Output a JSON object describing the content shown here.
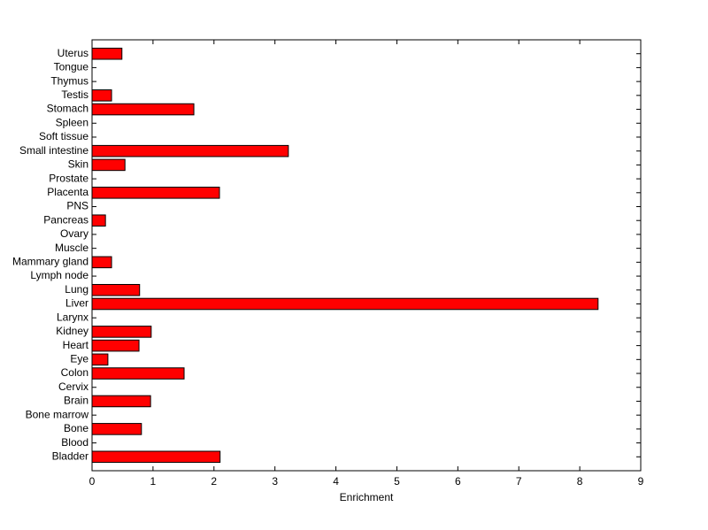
{
  "chart_data": {
    "type": "barh",
    "xlabel": "Enrichment",
    "categories": [
      "Bladder",
      "Blood",
      "Bone",
      "Bone marrow",
      "Brain",
      "Cervix",
      "Colon",
      "Eye",
      "Heart",
      "Kidney",
      "Larynx",
      "Liver",
      "Lung",
      "Lymph node",
      "Mammary gland",
      "Muscle",
      "Ovary",
      "Pancreas",
      "PNS",
      "Placenta",
      "Prostate",
      "Skin",
      "Small intestine",
      "Soft tissue",
      "Spleen",
      "Stomach",
      "Testis",
      "Thymus",
      "Tongue",
      "Uterus"
    ],
    "values": [
      2.1,
      0,
      0.81,
      0,
      0.96,
      0,
      1.51,
      0.26,
      0.77,
      0.97,
      0,
      8.3,
      0.78,
      0,
      0.32,
      0,
      0,
      0.22,
      0,
      2.09,
      0,
      0.54,
      3.22,
      0,
      0,
      1.67,
      0.32,
      0,
      0,
      0.49
    ],
    "color": "#ff0000",
    "xlim": [
      0,
      9
    ],
    "xticks": [
      0,
      1,
      2,
      3,
      4,
      5,
      6,
      7,
      8,
      9
    ]
  }
}
